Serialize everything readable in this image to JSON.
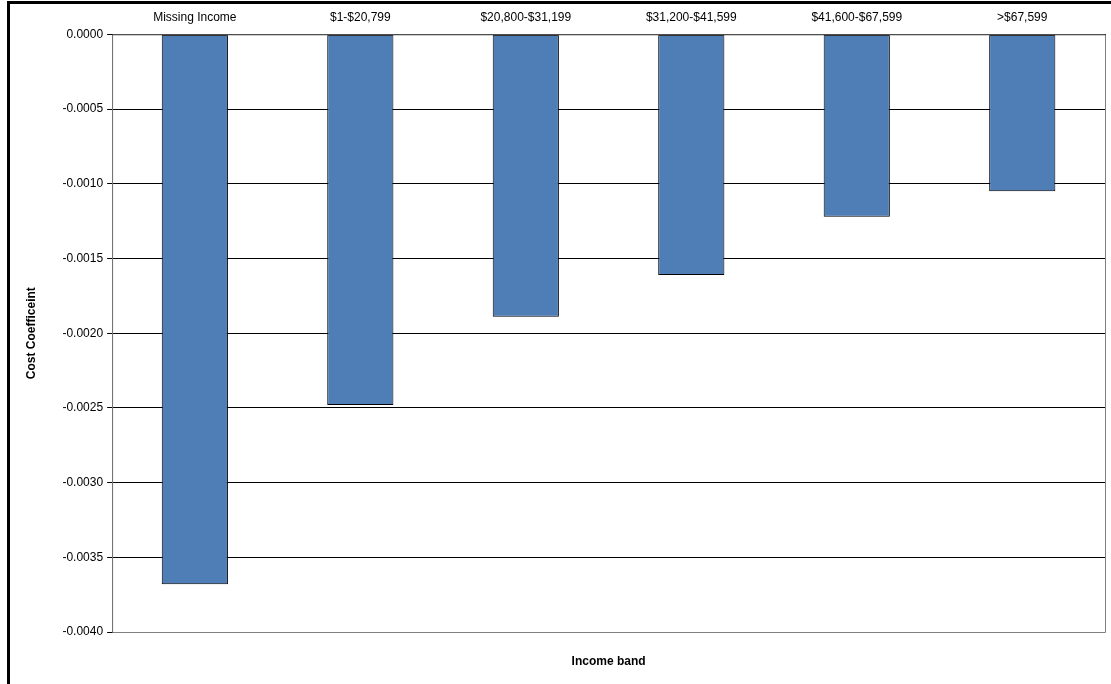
{
  "chart_data": {
    "type": "bar",
    "xlabel": "Income band",
    "ylabel": "Cost Coefficeint",
    "categories": [
      "Missing Income",
      "$1-$20,799",
      "$20,800-$31,199",
      "$31,200-$41,599",
      "$41,600-$67,599",
      ">$67,599"
    ],
    "values": [
      -0.00368,
      -0.00248,
      -0.00189,
      -0.00161,
      -0.00122,
      -0.00105
    ],
    "color": "#4f7db5",
    "ylim": [
      -0.004,
      0
    ],
    "yticks": [
      {
        "value": -0.004,
        "label": "-0.0040"
      },
      {
        "value": -0.0035,
        "label": "-0.0035"
      },
      {
        "value": -0.003,
        "label": "-0.0030"
      },
      {
        "value": -0.0025,
        "label": "-0.0025"
      },
      {
        "value": -0.002,
        "label": "-0.0020"
      },
      {
        "value": -0.0015,
        "label": "-0.0015"
      },
      {
        "value": -0.001,
        "label": "-0.0010"
      },
      {
        "value": -0.0005,
        "label": "-0.0005"
      },
      {
        "value": 0,
        "label": "0.0000"
      }
    ],
    "grid": "y",
    "legend": false
  }
}
